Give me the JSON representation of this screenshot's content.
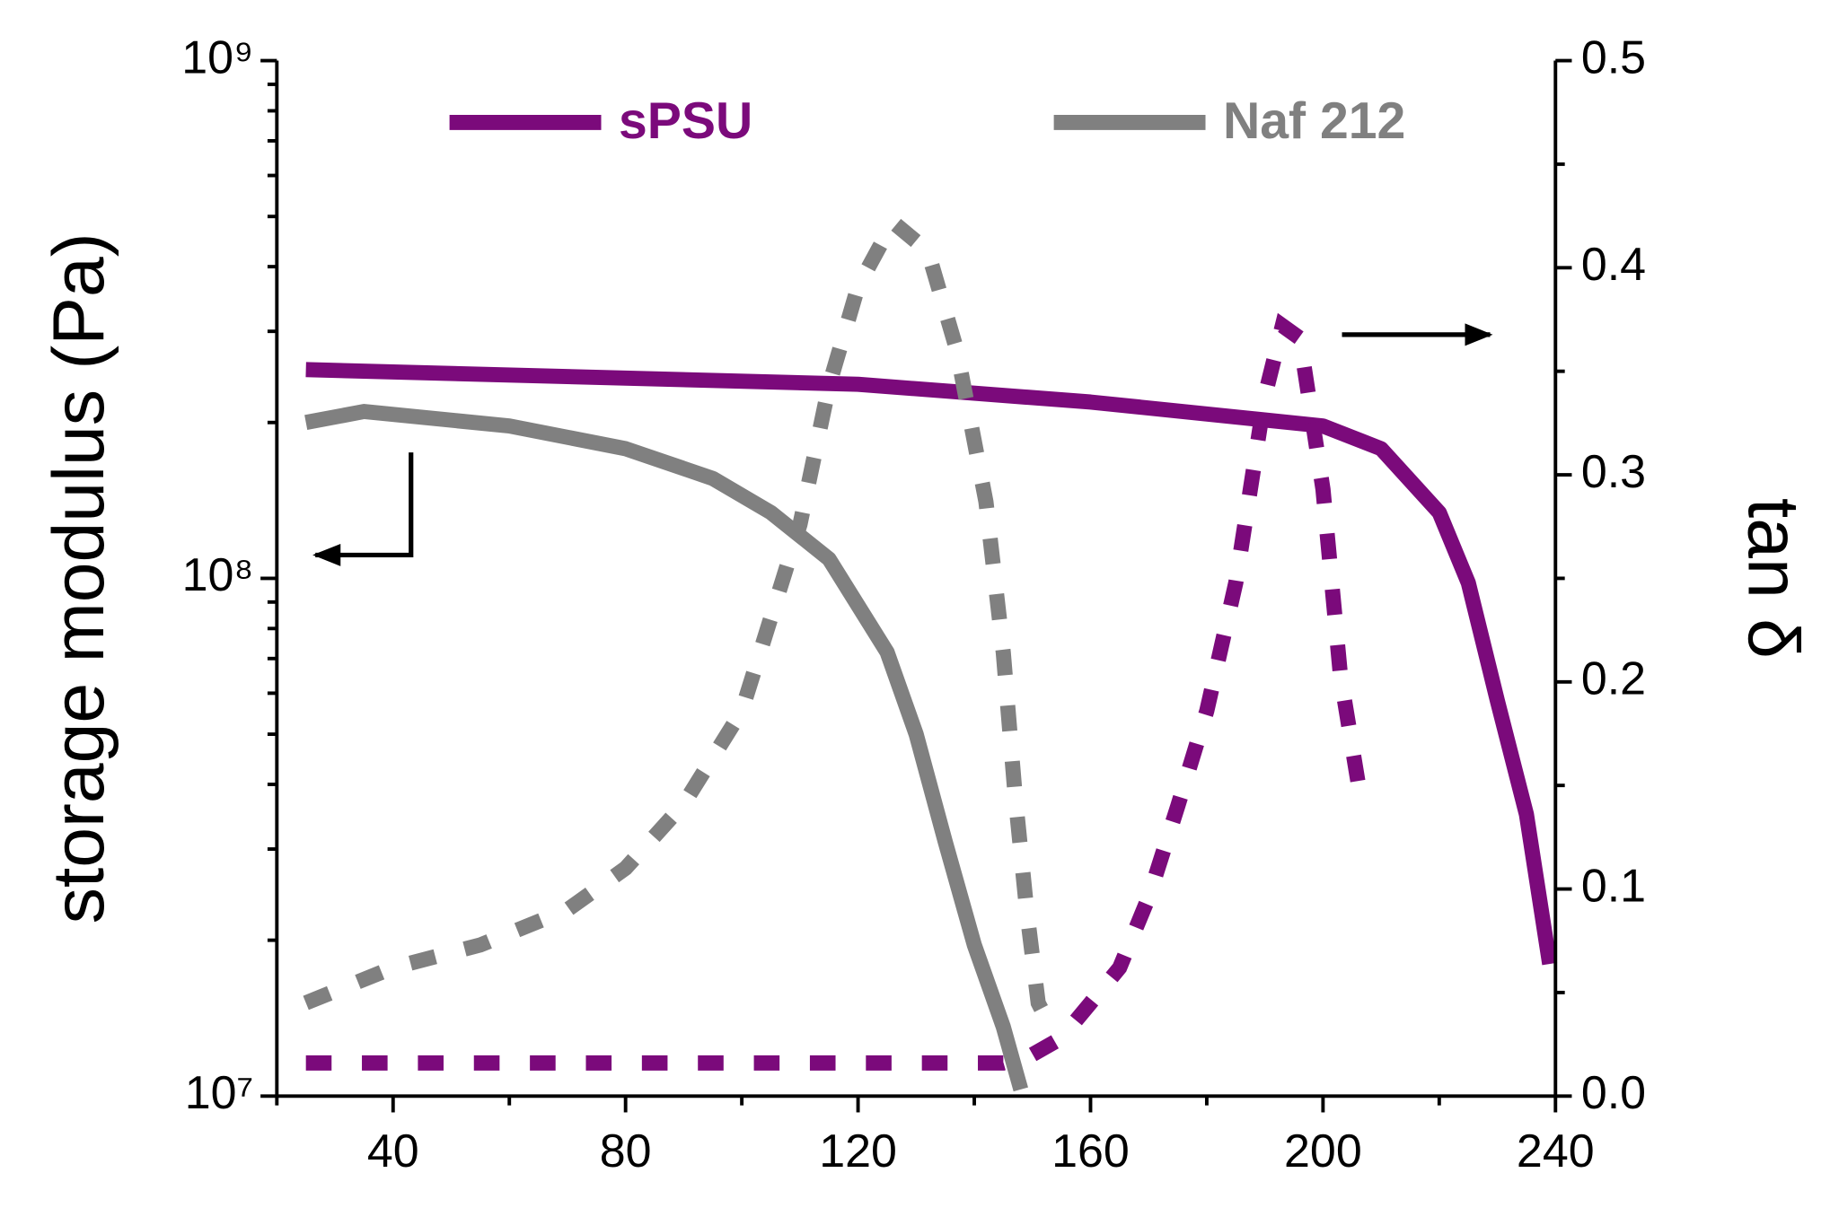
{
  "chart_data": {
    "type": "line",
    "y_label": "storage modulus (Pa)",
    "y2_label": "tan δ",
    "xlim": [
      20,
      240
    ],
    "xticks": [
      40,
      80,
      120,
      160,
      200,
      240
    ],
    "xminorticks": [
      20,
      60,
      100,
      140,
      180,
      220
    ],
    "ylim": [
      10000000,
      1000000000
    ],
    "yscale": "log",
    "yticks": [
      {
        "value": 10000000,
        "label": "10⁷"
      },
      {
        "value": 100000000,
        "label": "10⁸"
      },
      {
        "value": 1000000000,
        "label": "10⁹"
      }
    ],
    "yminorticks": [
      20000000,
      30000000,
      40000000,
      50000000,
      60000000,
      70000000,
      80000000,
      90000000,
      200000000,
      300000000,
      400000000,
      500000000,
      600000000,
      700000000,
      800000000,
      900000000
    ],
    "y2lim": [
      0,
      0.5
    ],
    "y2ticks": [
      {
        "value": 0,
        "label": "0.0"
      },
      0.1,
      0.2,
      0.3,
      0.4,
      0.5
    ],
    "y2minorticks": [
      0.05,
      0.15,
      0.25,
      0.35,
      0.45
    ],
    "series": [
      {
        "name": "sPSU",
        "color": "#7b0a7b",
        "linestyle": "solid",
        "x": [
          25,
          120,
          160,
          200,
          210,
          220,
          225,
          230,
          235,
          239
        ],
        "values": [
          253000000,
          237000000,
          219000000,
          197000000,
          178000000,
          134000000,
          98000000,
          58000000,
          35000000,
          18000000
        ]
      },
      {
        "name": "Naf 212",
        "color": "#808080",
        "linestyle": "solid",
        "x": [
          25,
          35,
          60,
          80,
          95,
          105,
          115,
          125,
          130,
          135,
          140,
          145,
          148
        ],
        "values": [
          200000000,
          210000000,
          197000000,
          178000000,
          156000000,
          134000000,
          109000000,
          72000000,
          50000000,
          31000000,
          19600000,
          13600000,
          10300000
        ]
      },
      {
        "name": "sPSU",
        "color": "#7b0a7b",
        "linestyle": "dotted",
        "axis": "y2",
        "x": [
          25,
          145,
          150,
          155,
          160,
          165,
          170,
          175,
          180,
          185,
          190,
          193,
          196,
          200,
          203,
          206
        ],
        "values": [
          0.016,
          0.016,
          0.02,
          0.028,
          0.045,
          0.062,
          0.096,
          0.14,
          0.186,
          0.248,
          0.338,
          0.372,
          0.366,
          0.293,
          0.203,
          0.152
        ]
      },
      {
        "name": "Naf 212",
        "color": "#808080",
        "linestyle": "dotted",
        "axis": "y2",
        "x": [
          25,
          40,
          55,
          70,
          80,
          90,
          100,
          110,
          115,
          120,
          126,
          132,
          137,
          142,
          145,
          147,
          149,
          151,
          153
        ],
        "values": [
          0.045,
          0.062,
          0.073,
          0.09,
          0.11,
          0.141,
          0.186,
          0.276,
          0.343,
          0.391,
          0.422,
          0.408,
          0.36,
          0.287,
          0.214,
          0.146,
          0.09,
          0.045,
          0.034
        ]
      }
    ]
  }
}
